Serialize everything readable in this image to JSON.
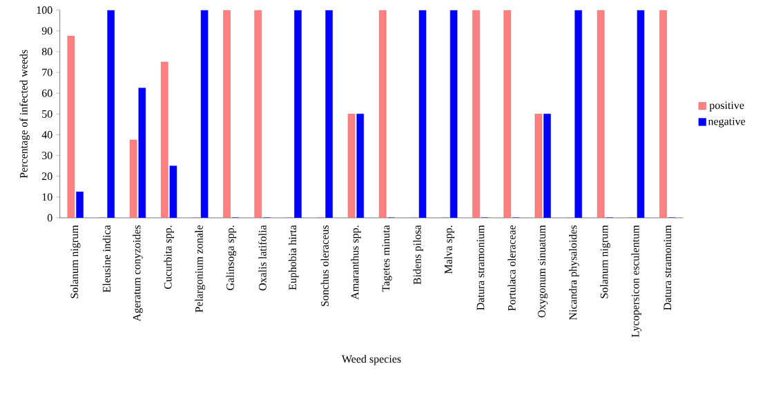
{
  "chart_data": {
    "type": "bar",
    "xlabel": "Weed species",
    "ylabel": "Percentage of infected weeds",
    "categories": [
      "Solanum nigrum",
      "Eleusine indica",
      "Ageratum conyzoides",
      "Cucurbita spp.",
      "Pelargonium zonale",
      "Galinsoga spp.",
      "Oxalis latifolia",
      "Euphobia hirta",
      "Sonchus oleraceus",
      "Amaranthus spp.",
      "Tagetes minuta",
      "Bidens pilosa",
      "Malva spp.",
      "Datura stramonium",
      "Portulaca oleraceae",
      "Oxygonum sinuatum",
      "Nicandra physaloides",
      "Solanum nigrum",
      "Lycopersicon esculentum",
      "Datura stramonium"
    ],
    "series": [
      {
        "name": "positive",
        "color": "#ff8080",
        "values": [
          87.5,
          0,
          37.5,
          75,
          0,
          100,
          100,
          0,
          0,
          50,
          100,
          0,
          0,
          100,
          100,
          50,
          0,
          100,
          0,
          100
        ]
      },
      {
        "name": "negative",
        "color": "#0000ff",
        "values": [
          12.5,
          100,
          62.5,
          25,
          100,
          0,
          0,
          100,
          100,
          50,
          0,
          100,
          100,
          0,
          0,
          50,
          100,
          0,
          100,
          0
        ]
      }
    ],
    "ylim": [
      0,
      100
    ],
    "yticks": [
      0,
      10,
      20,
      30,
      40,
      50,
      60,
      70,
      80,
      90,
      100
    ],
    "grid": false,
    "legend": "right"
  }
}
